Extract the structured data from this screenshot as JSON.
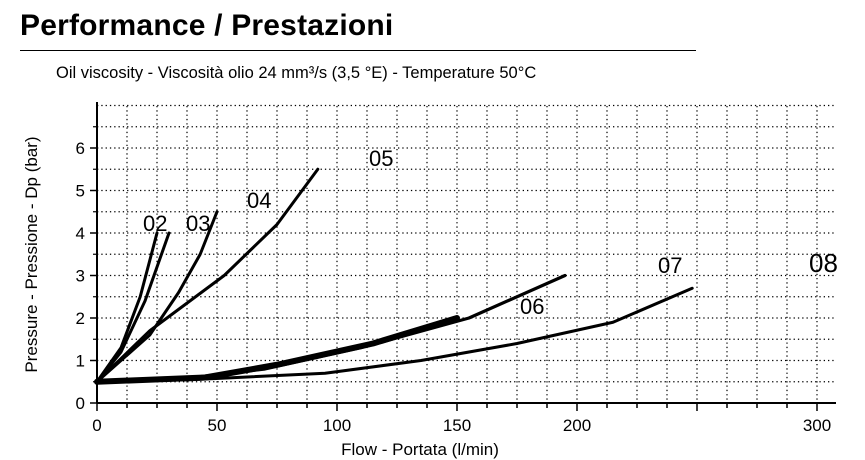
{
  "page": {
    "title": "Performance / Prestazioni",
    "subtitle": "Oil viscosity - Viscosità olio 24 mm³/s (3,5 °E) - Temperature 50°C"
  },
  "chart_data": {
    "type": "line",
    "title": "Performance / Prestazioni",
    "subtitle": "Oil viscosity - Viscosità olio 24 mm³/s (3,5 °E) - Temperature 50°C",
    "xlabel": "Flow - Portata (l/min)",
    "ylabel": "Pressure - Pressione - Dp (bar)",
    "xlim": [
      0,
      310
    ],
    "ylim": [
      0,
      7
    ],
    "x_tick_labels": [
      {
        "value": 0,
        "label": "0"
      },
      {
        "value": 50,
        "label": "50"
      },
      {
        "value": 100,
        "label": "100"
      },
      {
        "value": 150,
        "label": "150"
      },
      {
        "value": 200,
        "label": "200"
      },
      {
        "value": 300,
        "label": "300"
      }
    ],
    "y_ticks": [
      0,
      1,
      2,
      3,
      4,
      5,
      6
    ],
    "grid": "dotted, vertical every 12.5 l/min, horizontal every 0.5 bar",
    "series": [
      {
        "name": "02",
        "x": [
          0,
          10,
          18,
          25
        ],
        "y": [
          0.5,
          1.3,
          2.5,
          4.0
        ]
      },
      {
        "name": "03",
        "x": [
          0,
          10,
          20,
          30
        ],
        "y": [
          0.5,
          1.2,
          2.4,
          4.0
        ]
      },
      {
        "name": "04",
        "x": [
          0,
          22,
          34,
          43,
          50
        ],
        "y": [
          0.5,
          1.6,
          2.6,
          3.5,
          4.5
        ]
      },
      {
        "name": "05",
        "x": [
          0,
          22,
          53,
          75,
          92
        ],
        "y": [
          0.5,
          1.7,
          3.0,
          4.2,
          5.5
        ]
      },
      {
        "name": "06",
        "x": [
          0,
          45,
          75,
          115,
          150
        ],
        "y": [
          0.5,
          0.6,
          0.9,
          1.4,
          2.0
        ]
      },
      {
        "name": "07",
        "x": [
          0,
          40,
          70,
          110,
          155,
          195
        ],
        "y": [
          0.5,
          0.6,
          0.8,
          1.3,
          2.0,
          3.0
        ]
      },
      {
        "name": "08",
        "x": [
          0,
          40,
          95,
          135,
          175,
          215,
          248
        ],
        "y": [
          0.5,
          0.55,
          0.7,
          1.0,
          1.4,
          1.9,
          2.7
        ]
      }
    ]
  }
}
